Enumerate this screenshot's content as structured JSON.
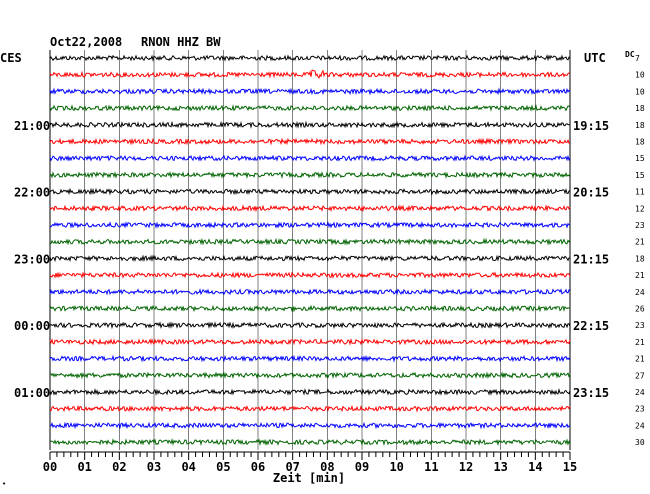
{
  "header": {
    "date": "Oct22,2008",
    "station": "RNON HHZ BW"
  },
  "left_tz": "CES",
  "right_tz": "UTC",
  "dc_label": "DC",
  "xlabel": "Zeit [min]",
  "chart_data": {
    "type": "line",
    "title": "Oct22,2008 RNON HHZ BW",
    "xlabel": "Zeit [min]",
    "xlim": [
      0,
      15
    ],
    "x_ticks": [
      "00",
      "01",
      "02",
      "03",
      "04",
      "05",
      "06",
      "07",
      "08",
      "09",
      "10",
      "11",
      "12",
      "13",
      "14",
      "15"
    ],
    "trace_count": 24,
    "trace_colors": [
      "#000000",
      "#ff0000",
      "#0000ff",
      "#006400"
    ],
    "left_time_labels": [
      {
        "trace": 4,
        "label": "21:00"
      },
      {
        "trace": 8,
        "label": "22:00"
      },
      {
        "trace": 12,
        "label": "23:00"
      },
      {
        "trace": 16,
        "label": "00:00"
      },
      {
        "trace": 20,
        "label": "01:00"
      }
    ],
    "right_time_labels": [
      {
        "trace": 4,
        "label": "19:15"
      },
      {
        "trace": 8,
        "label": "20:15"
      },
      {
        "trace": 12,
        "label": "21:15"
      },
      {
        "trace": 16,
        "label": "22:15"
      },
      {
        "trace": 20,
        "label": "23:15"
      }
    ],
    "dc_values": [
      "7",
      "10",
      "10",
      "18",
      "18",
      "18",
      "15",
      "15",
      "11",
      "12",
      "23",
      "21",
      "18",
      "21",
      "24",
      "26",
      "23",
      "21",
      "21",
      "27",
      "24",
      "23",
      "24",
      "30"
    ],
    "events": [
      {
        "trace": 1,
        "minute": 7.7
      }
    ]
  }
}
